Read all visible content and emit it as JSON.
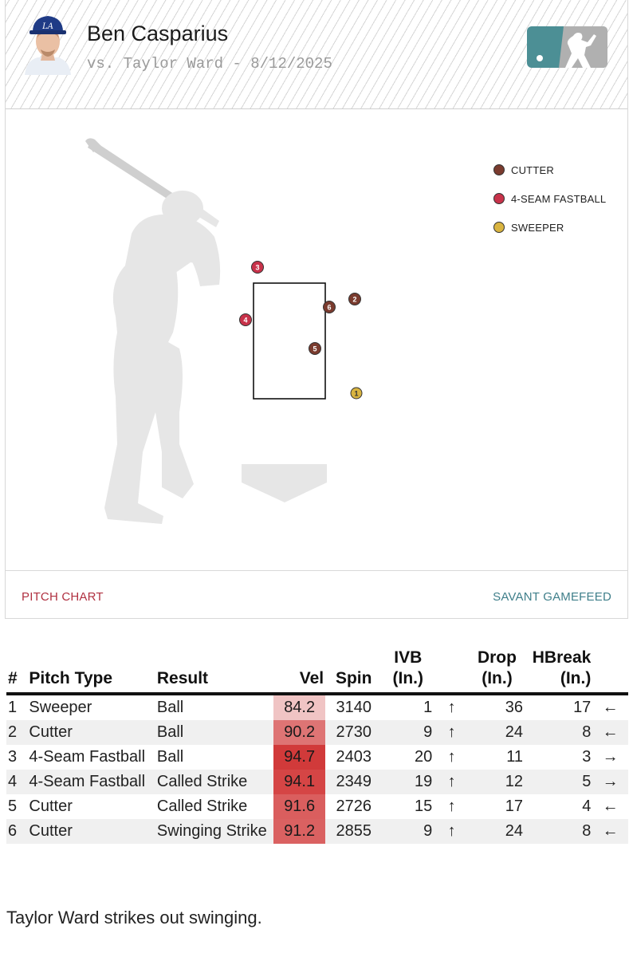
{
  "header": {
    "pitcher_name": "Ben Casparius",
    "matchup": "vs. Taylor Ward - 8/12/2025"
  },
  "legend": [
    {
      "label": "CUTTER",
      "color": "#7a3b2e"
    },
    {
      "label": "4-SEAM FASTBALL",
      "color": "#c8324a"
    },
    {
      "label": "SWEEPER",
      "color": "#d9b440"
    }
  ],
  "pitches_plot": [
    {
      "num": "1",
      "type": "Sweeper",
      "color": "#d9b440"
    },
    {
      "num": "2",
      "type": "Cutter",
      "color": "#7a3b2e"
    },
    {
      "num": "3",
      "type": "4-Seam Fastball",
      "color": "#c8324a"
    },
    {
      "num": "4",
      "type": "4-Seam Fastball",
      "color": "#c8324a"
    },
    {
      "num": "5",
      "type": "Cutter",
      "color": "#7a3b2e"
    },
    {
      "num": "6",
      "type": "Cutter",
      "color": "#7a3b2e"
    }
  ],
  "footer": {
    "left": "PITCH CHART",
    "right": "SAVANT GAMEFEED"
  },
  "table": {
    "headers": {
      "num": "#",
      "type": "Pitch Type",
      "result": "Result",
      "vel": "Vel",
      "spin": "Spin",
      "ivb_1": "IVB",
      "ivb_2": "(In.)",
      "drop_1": "Drop",
      "drop_2": "(In.)",
      "hb_1": "HBreak",
      "hb_2": "(In.)"
    },
    "rows": [
      {
        "num": "1",
        "type": "Sweeper",
        "result": "Ball",
        "vel": "84.2",
        "spin": "3140",
        "ivb": "1",
        "ivb_arrow": "↑",
        "drop": "36",
        "hbreak": "17",
        "hb_arrow": "←"
      },
      {
        "num": "2",
        "type": "Cutter",
        "result": "Ball",
        "vel": "90.2",
        "spin": "2730",
        "ivb": "9",
        "ivb_arrow": "↑",
        "drop": "24",
        "hbreak": "8",
        "hb_arrow": "←"
      },
      {
        "num": "3",
        "type": "4-Seam Fastball",
        "result": "Ball",
        "vel": "94.7",
        "spin": "2403",
        "ivb": "20",
        "ivb_arrow": "↑",
        "drop": "11",
        "hbreak": "3",
        "hb_arrow": "→"
      },
      {
        "num": "4",
        "type": "4-Seam Fastball",
        "result": "Called Strike",
        "vel": "94.1",
        "spin": "2349",
        "ivb": "19",
        "ivb_arrow": "↑",
        "drop": "12",
        "hbreak": "5",
        "hb_arrow": "→"
      },
      {
        "num": "5",
        "type": "Cutter",
        "result": "Called Strike",
        "vel": "91.6",
        "spin": "2726",
        "ivb": "15",
        "ivb_arrow": "↑",
        "drop": "17",
        "hbreak": "4",
        "hb_arrow": "←"
      },
      {
        "num": "6",
        "type": "Cutter",
        "result": "Swinging Strike",
        "vel": "91.2",
        "spin": "2855",
        "ivb": "9",
        "ivb_arrow": "↑",
        "drop": "24",
        "hbreak": "8",
        "hb_arrow": "←"
      }
    ],
    "vel_colors": [
      "#f0c4c4",
      "#de7474",
      "#d13a3a",
      "#d54545",
      "#da5e5e",
      "#da6161"
    ]
  },
  "summary": "Taylor Ward strikes out swinging."
}
